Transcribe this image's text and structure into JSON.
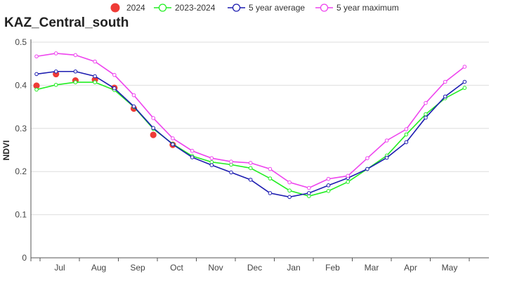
{
  "chart_data": {
    "type": "line",
    "title": "KAZ_Central_south",
    "xlabel": "",
    "ylabel": "NDVI",
    "ylim": [
      0,
      0.5
    ],
    "yticks": [
      "0",
      "0.1",
      "0.2",
      "0.3",
      "0.4",
      "0.5"
    ],
    "month_labels": [
      "Jul",
      "Aug",
      "Sep",
      "Oct",
      "Nov",
      "Dec",
      "Jan",
      "Feb",
      "Mar",
      "Apr",
      "May"
    ],
    "x": [
      0,
      1,
      2,
      3,
      4,
      5,
      6,
      7,
      8,
      9,
      10,
      11,
      12,
      13,
      14,
      15,
      16,
      17,
      18,
      19,
      20,
      21,
      22
    ],
    "x_unit": "dekad",
    "grid": true,
    "legend_position": "top-center",
    "series": [
      {
        "name": "2024",
        "style": "points",
        "color": "#ef3b36",
        "x": [
          0,
          1,
          2,
          3,
          4,
          5,
          6,
          7
        ],
        "values": [
          0.399,
          0.426,
          0.411,
          0.413,
          0.394,
          0.346,
          0.285,
          0.262
        ]
      },
      {
        "name": "2023-2024",
        "style": "line",
        "color": "#22ee22",
        "values": [
          0.39,
          0.401,
          0.407,
          0.407,
          0.389,
          0.35,
          0.299,
          0.264,
          0.236,
          0.222,
          0.216,
          0.208,
          0.184,
          0.156,
          0.143,
          0.155,
          0.176,
          0.206,
          0.237,
          0.286,
          0.333,
          0.37,
          0.394
        ]
      },
      {
        "name": "5 year average",
        "style": "line",
        "color": "#1c1cb0",
        "values": [
          0.426,
          0.432,
          0.432,
          0.421,
          0.393,
          0.351,
          0.301,
          0.263,
          0.233,
          0.215,
          0.198,
          0.181,
          0.15,
          0.141,
          0.15,
          0.168,
          0.185,
          0.206,
          0.232,
          0.268,
          0.325,
          0.374,
          0.408
        ]
      },
      {
        "name": "5 year maximum",
        "style": "line",
        "color": "#ee44ee",
        "values": [
          0.467,
          0.474,
          0.47,
          0.455,
          0.424,
          0.377,
          0.324,
          0.277,
          0.248,
          0.231,
          0.223,
          0.22,
          0.206,
          0.175,
          0.162,
          0.183,
          0.19,
          0.231,
          0.272,
          0.298,
          0.359,
          0.408,
          0.443
        ]
      }
    ]
  }
}
